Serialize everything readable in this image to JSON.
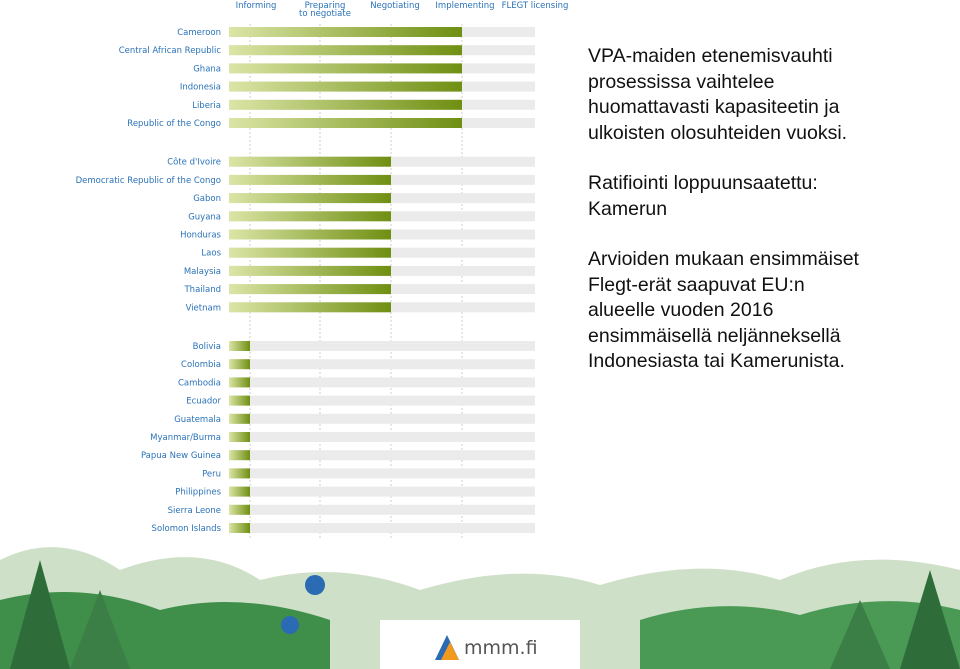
{
  "chart_data": {
    "type": "bar",
    "stages": [
      "Informing",
      [
        "Preparing",
        "to negotiate"
      ],
      "Negotiating",
      "Implementing",
      "FLEGT licensing"
    ],
    "categories": [
      "Cameroon",
      "Central African Republic",
      "Ghana",
      "Indonesia",
      "Liberia",
      "Republic of the Congo",
      "Côte d'Ivoire",
      "Democratic Republic of the Congo",
      "Gabon",
      "Guyana",
      "Honduras",
      "Laos",
      "Malaysia",
      "Thailand",
      "Vietnam",
      "Bolivia",
      "Colombia",
      "Cambodia",
      "Ecuador",
      "Guatemala",
      "Myanmar/Burma",
      "Papua New Guinea",
      "Peru",
      "Philippines",
      "Sierra Leone",
      "Solomon Islands"
    ],
    "values": [
      4,
      4,
      4,
      4,
      4,
      4,
      3,
      3,
      3,
      3,
      3,
      3,
      3,
      3,
      3,
      1,
      1,
      1,
      1,
      1,
      1,
      1,
      1,
      1,
      1,
      1
    ],
    "colors": [
      "#dbe5a6",
      "#6f8f12"
    ]
  },
  "side_text": [
    [
      "VPA-maiden etenemisvauhti",
      "prosessissa vaihtelee",
      "huomattavasti kapasiteetin ja",
      "ulkoisten olosuhteiden vuoksi."
    ],
    [
      "Ratifiointi loppuunsaatettu:",
      "Kamerun"
    ],
    [
      "Arvioiden mukaan ensimmäiset",
      "Flegt-erät saapuvat EU:n",
      "alueelle vuoden 2016",
      "ensimmäisellä neljänneksellä",
      "Indonesiasta tai Kamerunista."
    ]
  ],
  "footer": {
    "logo": "mmm.fi"
  }
}
